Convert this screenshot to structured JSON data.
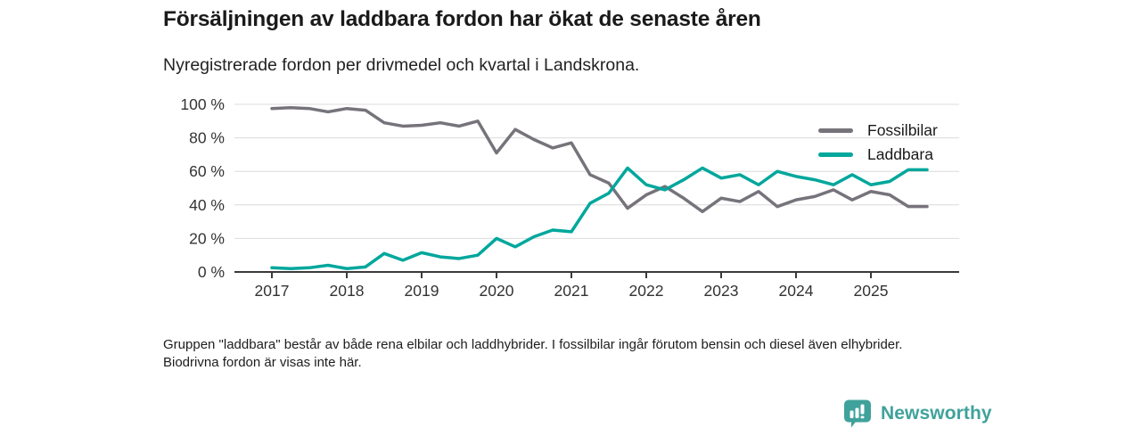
{
  "title": "Försäljningen av laddbara fordon har ökat de senaste åren",
  "subtitle": "Nyregistrerade fordon per drivmedel och kvartal i Landskrona.",
  "footnote": "Gruppen \"laddbara\" består av både rena elbilar och laddhybrider. I fossilbilar ingår förutom bensin och diesel även elhybrider. Biodrivna fordon är visas inte här.",
  "branding": {
    "logo_text": "Newsworthy",
    "icon": "bar-chart-speech-bubble-icon",
    "color": "#3fa29b"
  },
  "colors": {
    "fossil_line": "#76737b",
    "laddbara_line": "#00a79c",
    "gridline": "#dcdcdc",
    "axis": "#3a3a3a",
    "tick_text": "#333333"
  },
  "chart_data": {
    "type": "line",
    "x_unit": "quarter",
    "x_start": "2017 Q1",
    "x_end": "2025 Q4",
    "x_tick_labels": [
      "2017",
      "2018",
      "2019",
      "2020",
      "2021",
      "2022",
      "2023",
      "2024",
      "2025"
    ],
    "y_ticks": [
      0,
      20,
      40,
      60,
      80,
      100
    ],
    "y_tick_labels": [
      "0 %",
      "20 %",
      "40 %",
      "60 %",
      "80 %",
      "100 %"
    ],
    "ylim": [
      0,
      100
    ],
    "grid": true,
    "legend_position": "top-right",
    "series": [
      {
        "name": "Fossilbilar",
        "color": "#76737b",
        "values": [
          97.5,
          98,
          97.5,
          95.5,
          97.5,
          96.5,
          89,
          87,
          87.5,
          89,
          87,
          90,
          71,
          85,
          79,
          74,
          77,
          58,
          53,
          38,
          46,
          51,
          44,
          36,
          44,
          42,
          48,
          39,
          43,
          45,
          49,
          43,
          48,
          46,
          39,
          39
        ]
      },
      {
        "name": "Laddbara",
        "color": "#00a79c",
        "values": [
          2.5,
          2,
          2.5,
          4,
          2,
          3,
          11,
          7,
          11.5,
          9,
          8,
          10,
          20,
          15,
          21,
          25,
          24,
          41,
          47,
          62,
          52,
          49,
          55,
          62,
          56,
          58,
          52,
          60,
          57,
          55,
          52,
          58,
          52,
          54,
          61,
          61
        ]
      }
    ]
  }
}
